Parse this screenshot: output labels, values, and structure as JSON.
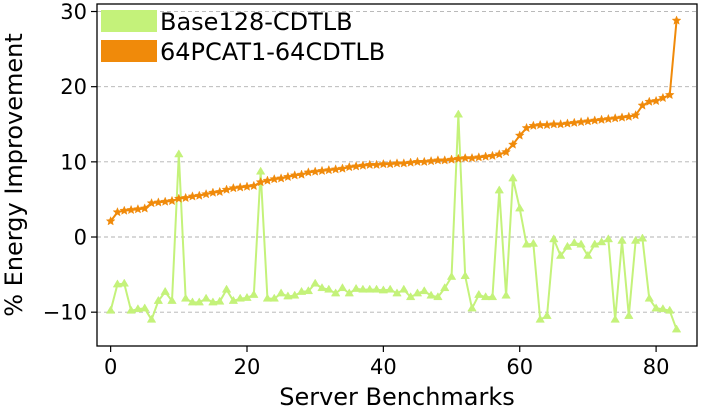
{
  "chart_data": {
    "type": "line",
    "title": "",
    "xlabel": "Server Benchmarks",
    "ylabel": "% Energy Improvement",
    "xlim": [
      -2,
      86
    ],
    "ylim": [
      -14.5,
      31
    ],
    "x_ticks": [
      0,
      20,
      40,
      60,
      80
    ],
    "y_ticks": [
      -10,
      0,
      10,
      20,
      30
    ],
    "grid": "horizontal-dashed",
    "legend_position": "top-left",
    "series": [
      {
        "name": "Base128-CDTLB",
        "color": "#c4f27a",
        "marker": "triangle",
        "values": [
          -9.8,
          -6.3,
          -6.2,
          -9.8,
          -9.6,
          -9.5,
          -11.0,
          -8.5,
          -7.3,
          -8.5,
          11.0,
          -8.2,
          -8.7,
          -8.7,
          -8.2,
          -8.7,
          -8.6,
          -7.0,
          -8.5,
          -8.2,
          -8.1,
          -7.7,
          8.7,
          -8.2,
          -8.2,
          -7.5,
          -7.9,
          -7.8,
          -7.3,
          -7.2,
          -6.2,
          -6.8,
          -7.0,
          -7.5,
          -6.8,
          -7.5,
          -6.9,
          -7.0,
          -7.0,
          -7.0,
          -7.1,
          -7.0,
          -7.5,
          -7.0,
          -8.0,
          -7.5,
          -7.2,
          -7.8,
          -8.0,
          -6.8,
          -5.3,
          16.3,
          -5.2,
          -9.5,
          -7.7,
          -8.0,
          -8.0,
          6.2,
          -7.8,
          7.8,
          3.8,
          -1.0,
          -0.9,
          -11.0,
          -10.5,
          -0.3,
          -2.5,
          -1.3,
          -0.8,
          -1.0,
          -2.5,
          -1.0,
          -0.7,
          -0.3,
          -11.0,
          -0.5,
          -10.5,
          -0.5,
          -0.2,
          -8.2,
          -9.5,
          -9.6,
          -9.8,
          -12.3
        ]
      },
      {
        "name": "64PCAT1-64CDTLB",
        "color": "#f08a0a",
        "marker": "star",
        "values": [
          2.1,
          3.3,
          3.5,
          3.6,
          3.7,
          3.8,
          4.5,
          4.6,
          4.7,
          4.8,
          5.1,
          5.2,
          5.4,
          5.5,
          5.7,
          5.9,
          6.0,
          6.3,
          6.5,
          6.6,
          6.7,
          6.8,
          7.3,
          7.5,
          7.7,
          7.8,
          8.0,
          8.2,
          8.3,
          8.6,
          8.7,
          8.8,
          8.9,
          9.0,
          9.1,
          9.3,
          9.4,
          9.5,
          9.6,
          9.6,
          9.7,
          9.7,
          9.8,
          9.8,
          9.9,
          10.0,
          10.0,
          10.1,
          10.2,
          10.2,
          10.3,
          10.4,
          10.5,
          10.5,
          10.6,
          10.7,
          10.8,
          11.0,
          11.3,
          12.3,
          13.5,
          14.5,
          14.8,
          14.9,
          14.9,
          15.0,
          15.0,
          15.1,
          15.2,
          15.3,
          15.4,
          15.5,
          15.6,
          15.7,
          15.8,
          15.9,
          16.0,
          16.2,
          17.5,
          18.0,
          18.1,
          18.5,
          18.9,
          28.8
        ]
      }
    ]
  }
}
